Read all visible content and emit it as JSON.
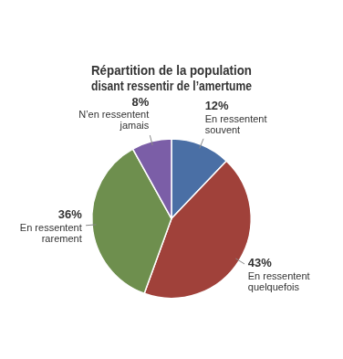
{
  "chart_data": {
    "type": "pie",
    "title": "Répartition de la population\ndisant ressentir de l’amertume",
    "categories": [
      "En ressentent\nsouvent",
      "En ressentent\nquelquefois",
      "En ressentent\nrarement",
      "N’en ressentent\njamais"
    ],
    "values": [
      12,
      43,
      36,
      8
    ],
    "value_labels": [
      "12%",
      "43%",
      "36%",
      "8%"
    ],
    "colors": [
      "#4a6fa5",
      "#a0413a",
      "#6e8f4e",
      "#7b5ea7"
    ],
    "data_labels": true,
    "legend": false
  }
}
